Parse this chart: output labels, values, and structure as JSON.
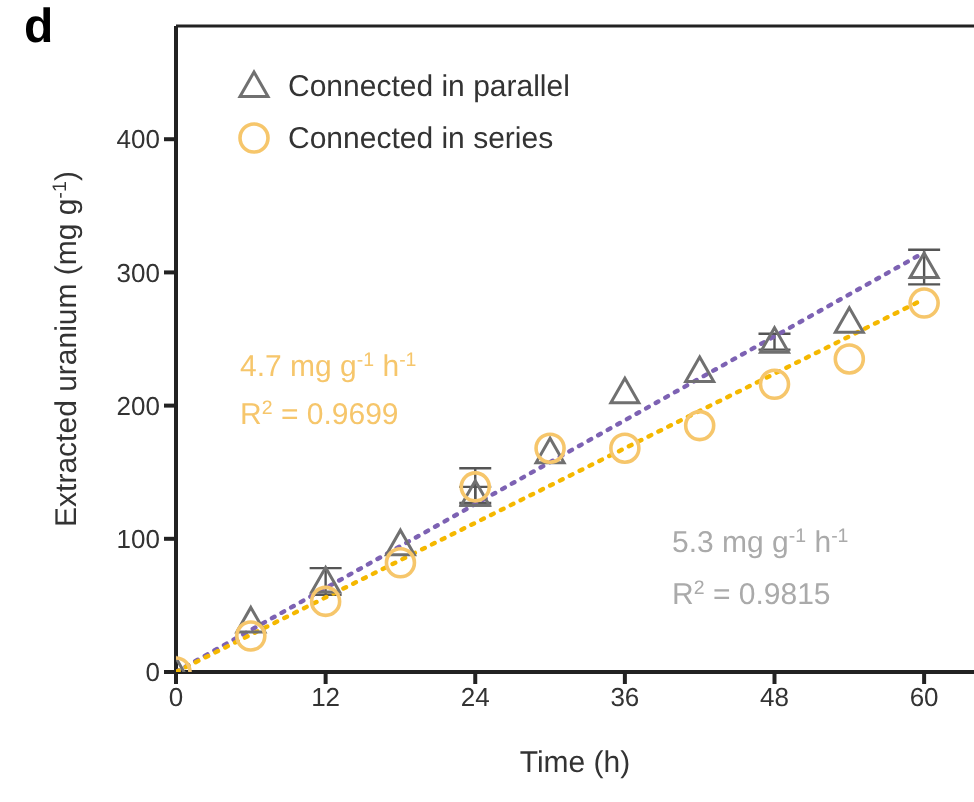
{
  "chart_data": {
    "type": "scatter",
    "title": "d",
    "xlabel": "Time (h)",
    "ylabel": "Extracted uranium (mg g$^{-1}$)",
    "xlim": [
      0,
      64
    ],
    "ylim": [
      0,
      485
    ],
    "xticks": [
      0,
      12,
      24,
      36,
      48,
      60
    ],
    "yticks": [
      0,
      100,
      200,
      300,
      400
    ],
    "grid": false,
    "legend": "top left",
    "series": [
      {
        "name": "Connected in parallel",
        "marker": "triangle",
        "color": "#707070",
        "x": [
          0,
          6,
          12,
          18,
          24,
          30,
          36,
          42,
          48,
          54,
          60
        ],
        "values": [
          0,
          38,
          68,
          96,
          133,
          165,
          210,
          226,
          248,
          263,
          304
        ],
        "errors": [
          null,
          null,
          10,
          null,
          6,
          null,
          null,
          null,
          6,
          null,
          13
        ]
      },
      {
        "name": "Connected in series",
        "marker": "circle",
        "color": "#f6c66b",
        "x": [
          0,
          6,
          12,
          18,
          24,
          30,
          36,
          42,
          48,
          54,
          60
        ],
        "values": [
          0,
          27,
          53,
          82,
          139,
          168,
          168,
          185,
          216,
          235,
          277
        ],
        "errors": [
          null,
          null,
          null,
          null,
          14,
          null,
          null,
          null,
          null,
          null,
          null
        ]
      },
      {
        "type": "line",
        "marker": "none",
        "line_style": "dotted",
        "color": "#7d62b3",
        "x": [
          0,
          60
        ],
        "values": [
          0,
          315
        ]
      },
      {
        "type": "line",
        "marker": "none",
        "line_style": "dotted",
        "color": "#f5b800",
        "x": [
          0,
          60
        ],
        "values": [
          0,
          280
        ]
      }
    ],
    "annotations": [
      "4.7 mg g$^{-1}$ h$^{-1}$",
      "R$^{2}$ = 0.9699",
      "5.3 mg g$^{-1}$ h$^{-1}$",
      "R$^{2}$ = 0.9815"
    ]
  }
}
